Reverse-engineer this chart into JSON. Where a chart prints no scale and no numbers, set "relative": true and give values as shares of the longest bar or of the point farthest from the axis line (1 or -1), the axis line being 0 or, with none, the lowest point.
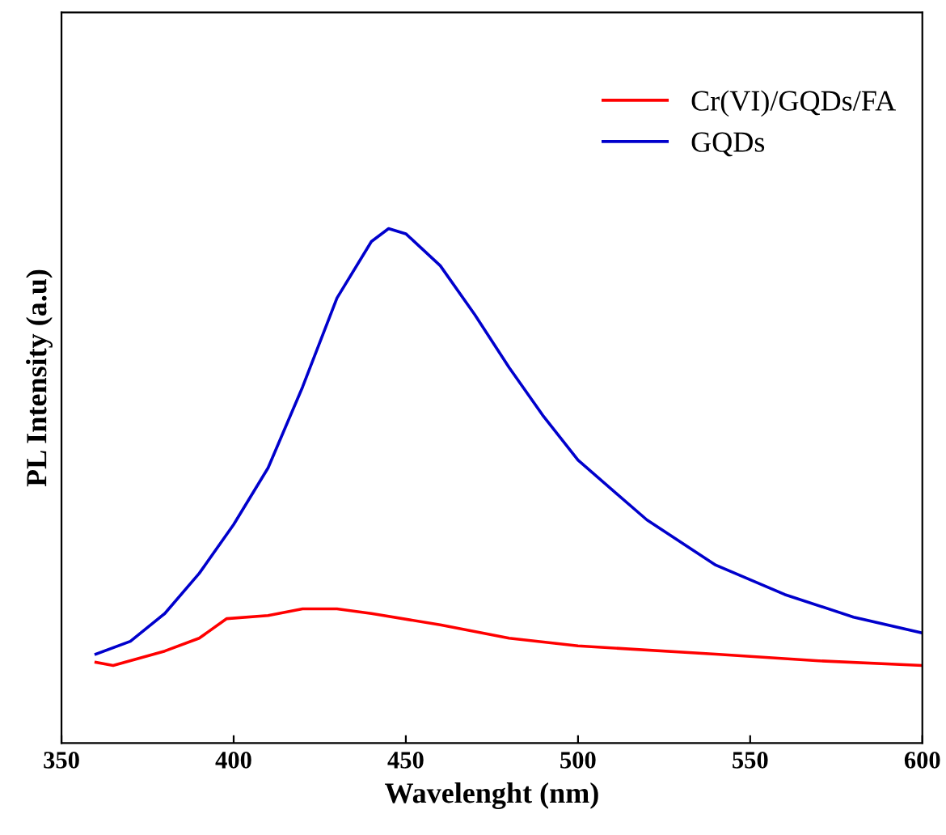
{
  "chart_data": {
    "type": "line",
    "xlabel": "Wavelenght (nm)",
    "ylabel": "PL Intensity (a.u)",
    "relative": true,
    "xlim": [
      350,
      600
    ],
    "xticks": [
      350,
      400,
      450,
      500,
      550,
      600
    ],
    "legend": "top right",
    "grid": false,
    "marker": "none",
    "line_style": "solid",
    "series": [
      {
        "name": "Cr(VI)/GQDs/FA",
        "color": "#ff0000",
        "x": [
          360,
          365,
          380,
          390,
          398,
          410,
          420,
          430,
          440,
          460,
          480,
          500,
          540,
          570,
          600
        ],
        "values": [
          0.157,
          0.151,
          0.179,
          0.204,
          0.242,
          0.248,
          0.261,
          0.261,
          0.252,
          0.23,
          0.204,
          0.189,
          0.173,
          0.16,
          0.151
        ]
      },
      {
        "name": "GQDs",
        "color": "#0000cc",
        "x": [
          360,
          370,
          380,
          390,
          400,
          410,
          420,
          430,
          440,
          445,
          450,
          460,
          470,
          480,
          490,
          500,
          520,
          540,
          560,
          580,
          600
        ],
        "values": [
          0.173,
          0.198,
          0.252,
          0.33,
          0.425,
          0.535,
          0.692,
          0.865,
          0.975,
          1,
          0.99,
          0.928,
          0.833,
          0.73,
          0.635,
          0.55,
          0.434,
          0.346,
          0.289,
          0.245,
          0.214
        ]
      }
    ]
  }
}
